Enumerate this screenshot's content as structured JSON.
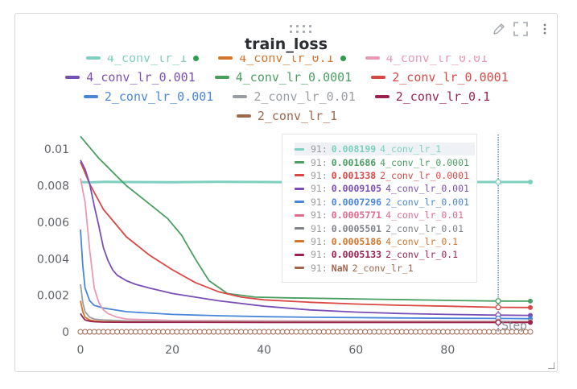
{
  "panel": {
    "title": "train_loss",
    "toolbar": [
      {
        "icon": "pencil-icon",
        "name": "edit-panel-button"
      },
      {
        "icon": "expand-icon",
        "name": "fullscreen-button"
      },
      {
        "icon": "more-vertical-icon",
        "name": "more-options-button"
      }
    ]
  },
  "tooltip": {
    "step": "91:",
    "rows": [
      {
        "value": "0.008199",
        "run": "4_conv_lr_1",
        "color": "#7ecfbf",
        "highlighted": true
      },
      {
        "value": "0.001686",
        "run": "4_conv_lr_0.0001",
        "color": "#4a9e62"
      },
      {
        "value": "0.001338",
        "run": "2_conv_lr_0.0001",
        "color": "#d94845"
      },
      {
        "value": "0.0009105",
        "run": "4_conv_lr_0.001",
        "color": "#7a4fb5"
      },
      {
        "value": "0.0007296",
        "run": "2_conv_lr_0.001",
        "color": "#4a86d8"
      },
      {
        "value": "0.0005771",
        "run": "4_conv_lr_0.01",
        "color": "#e06a8c"
      },
      {
        "value": "0.0005501",
        "run": "2_conv_lr_0.01",
        "color": "#7f8387"
      },
      {
        "value": "0.0005186",
        "run": "4_conv_lr_0.1",
        "color": "#d2762e"
      },
      {
        "value": "0.0005133",
        "run": "2_conv_lr_0.1",
        "color": "#9b2150"
      },
      {
        "value": "NaN",
        "run": "2_conv_lr_1",
        "color": "#a0664e"
      }
    ],
    "axis_label": "Step"
  },
  "chart_data": {
    "type": "line",
    "title": "train_loss",
    "xlabel": "Step",
    "ylabel": "",
    "xlim": [
      0,
      98
    ],
    "ylim": [
      0,
      0.0108
    ],
    "xticks": [
      0,
      20,
      40,
      60,
      80
    ],
    "xtick_labels": [
      "0",
      "20",
      "40",
      "60",
      "80"
    ],
    "yticks": [
      0,
      0.002,
      0.004,
      0.006,
      0.008,
      0.01
    ],
    "ytick_labels": [
      "0",
      "0.002",
      "0.004",
      "0.006",
      "0.008",
      "0.01"
    ],
    "hover_step": 91,
    "legend_rows": [
      [
        "4_conv_lr_1",
        "4_conv_lr_0.1",
        "4_conv_lr_0.01"
      ],
      [
        "4_conv_lr_0.001",
        "4_conv_lr_0.0001",
        "2_conv_lr_0.0001"
      ],
      [
        "2_conv_lr_0.001",
        "2_conv_lr_0.01",
        "2_conv_lr_0.1"
      ],
      [
        "2_conv_lr_1"
      ]
    ],
    "series": [
      {
        "name": "4_conv_lr_1",
        "color": "#7ecfbf",
        "width": 3,
        "x": [
          0,
          2,
          5,
          10,
          20,
          30,
          40,
          50,
          60,
          70,
          80,
          91,
          98
        ],
        "y": [
          0.0082,
          0.00818,
          0.00821,
          0.0082,
          0.00819,
          0.00821,
          0.0082,
          0.00818,
          0.0082,
          0.0082,
          0.0082,
          0.008199,
          0.0082
        ]
      },
      {
        "name": "4_conv_lr_0.0001",
        "color": "#4a9e62",
        "width": 1.8,
        "x": [
          0,
          2,
          4,
          6,
          8,
          10,
          13,
          16,
          19,
          22,
          25,
          28,
          32,
          38,
          45,
          55,
          65,
          75,
          85,
          91,
          98
        ],
        "y": [
          0.0107,
          0.0101,
          0.0095,
          0.009,
          0.0085,
          0.008,
          0.0074,
          0.0068,
          0.0062,
          0.0053,
          0.004,
          0.0028,
          0.0021,
          0.0019,
          0.00186,
          0.00182,
          0.00178,
          0.00174,
          0.0017,
          0.001686,
          0.00168
        ]
      },
      {
        "name": "2_conv_lr_0.0001",
        "color": "#d94845",
        "width": 1.8,
        "x": [
          0,
          2,
          5,
          10,
          15,
          20,
          25,
          30,
          35,
          40,
          50,
          60,
          70,
          80,
          91,
          98
        ],
        "y": [
          0.0093,
          0.0081,
          0.0067,
          0.0052,
          0.0042,
          0.0034,
          0.0027,
          0.0022,
          0.0019,
          0.00175,
          0.00162,
          0.00152,
          0.00145,
          0.0014,
          0.001338,
          0.00133
        ]
      },
      {
        "name": "4_conv_lr_0.001",
        "color": "#7a4fb5",
        "width": 1.8,
        "x": [
          0,
          1,
          2,
          3,
          4,
          5,
          6,
          7,
          8,
          10,
          12,
          15,
          20,
          25,
          30,
          40,
          50,
          60,
          70,
          80,
          91,
          98
        ],
        "y": [
          0.0094,
          0.0089,
          0.0081,
          0.0069,
          0.0058,
          0.0046,
          0.0039,
          0.0034,
          0.0031,
          0.0028,
          0.0026,
          0.0024,
          0.0021,
          0.0019,
          0.0017,
          0.0014,
          0.0012,
          0.00108,
          0.001,
          0.00095,
          0.0009105,
          0.0009
        ]
      },
      {
        "name": "2_conv_lr_0.001",
        "color": "#4a86d8",
        "width": 1.8,
        "x": [
          0,
          0.5,
          1,
          2,
          3,
          5,
          10,
          20,
          30,
          40,
          50,
          60,
          70,
          80,
          91,
          98
        ],
        "y": [
          0.0056,
          0.0036,
          0.0024,
          0.0017,
          0.00145,
          0.0013,
          0.0011,
          0.00095,
          0.00088,
          0.00083,
          0.0008,
          0.00078,
          0.00076,
          0.00074,
          0.0007296,
          0.00072
        ]
      },
      {
        "name": "4_conv_lr_0.01",
        "color": "#e89ab5",
        "width": 1.8,
        "x": [
          0,
          1,
          2,
          3,
          4,
          5,
          6,
          8,
          10,
          20,
          40,
          60,
          80,
          91,
          98
        ],
        "y": [
          0.0084,
          0.0071,
          0.0045,
          0.0024,
          0.0016,
          0.0012,
          0.001,
          0.0008,
          0.0007,
          0.00062,
          0.0006,
          0.00059,
          0.00058,
          0.0005771,
          0.00057
        ]
      },
      {
        "name": "2_conv_lr_0.01",
        "color": "#9a9ea3",
        "width": 1.8,
        "x": [
          0,
          0.5,
          1,
          2,
          3,
          5,
          10,
          20,
          40,
          60,
          80,
          91,
          98
        ],
        "y": [
          0.0026,
          0.0016,
          0.0011,
          0.0008,
          0.0007,
          0.00065,
          0.0006,
          0.00057,
          0.00056,
          0.00055,
          0.00055,
          0.0005501,
          0.00055
        ]
      },
      {
        "name": "4_conv_lr_0.1",
        "color": "#d2762e",
        "width": 1.8,
        "x": [
          0,
          0.5,
          1,
          2,
          3,
          5,
          10,
          20,
          40,
          60,
          80,
          91,
          98
        ],
        "y": [
          0.0017,
          0.0011,
          0.0008,
          0.00065,
          0.0006,
          0.00056,
          0.00054,
          0.00053,
          0.00052,
          0.00052,
          0.00052,
          0.0005186,
          0.00052
        ]
      },
      {
        "name": "2_conv_lr_0.1",
        "color": "#9b2150",
        "width": 1.8,
        "x": [
          0,
          0.5,
          1,
          2,
          3,
          5,
          10,
          20,
          40,
          60,
          80,
          91,
          98
        ],
        "y": [
          0.001,
          0.0008,
          0.00065,
          0.00058,
          0.00055,
          0.00053,
          0.00052,
          0.00052,
          0.00051,
          0.00051,
          0.00051,
          0.0005133,
          0.00051
        ]
      },
      {
        "name": "2_conv_lr_1",
        "color": "#a0664e",
        "width": 1.5,
        "markers": "open-circles",
        "x": [
          0,
          98
        ],
        "y": [
          0,
          0
        ]
      }
    ]
  }
}
